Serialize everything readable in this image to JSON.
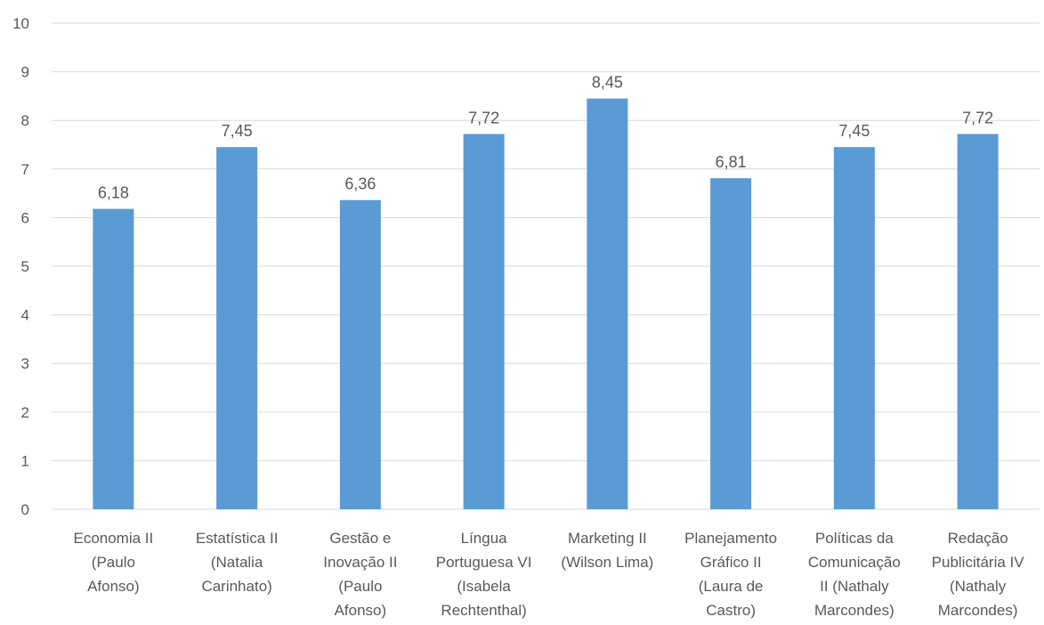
{
  "chart_data": {
    "type": "bar",
    "title": "",
    "xlabel": "",
    "ylabel": "",
    "ylim": [
      0,
      10
    ],
    "yticks": [
      0,
      1,
      2,
      3,
      4,
      5,
      6,
      7,
      8,
      9,
      10
    ],
    "grid": true,
    "legend": "none",
    "bar_color": "#5b9bd5",
    "categories": [
      [
        "Economia II",
        "(Paulo",
        "Afonso)"
      ],
      [
        "Estatística II",
        "(Natalia",
        "Carinhato)"
      ],
      [
        "Gestão e",
        "Inovação II",
        "(Paulo",
        "Afonso)"
      ],
      [
        "Língua",
        "Portuguesa VI",
        "(Isabela",
        "Rechtenthal)"
      ],
      [
        "Marketing II",
        "(Wilson Lima)"
      ],
      [
        "Planejamento",
        "Gráfico II",
        "(Laura de",
        "Castro)"
      ],
      [
        "Políticas da",
        "Comunicação",
        "II (Nathaly",
        "Marcondes)"
      ],
      [
        "Redação",
        "Publicitária IV",
        "(Nathaly",
        "Marcondes)"
      ]
    ],
    "values": [
      6.18,
      7.45,
      6.36,
      7.72,
      8.45,
      6.81,
      7.45,
      7.72
    ],
    "data_labels": [
      "6,18",
      "7,45",
      "6,36",
      "7,72",
      "8,45",
      "6,81",
      "7,45",
      "7,72"
    ]
  }
}
